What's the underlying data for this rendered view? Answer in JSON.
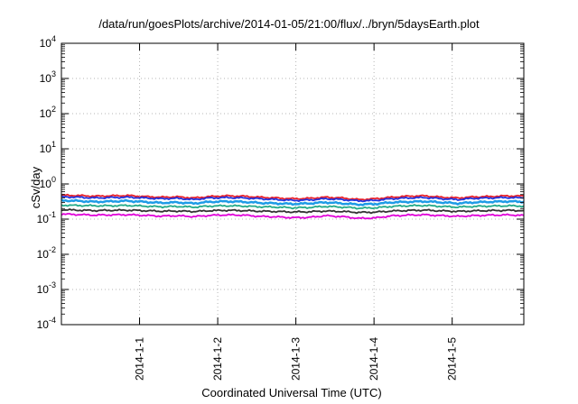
{
  "chart_data": {
    "type": "line",
    "title": "/data/run/goesPlots/archive/2014-01-05/21:00/flux/../bryn/5daysEarth.plot",
    "xlabel": "Coordinated Universal Time (UTC)",
    "ylabel": "cSv/day",
    "xscale": "time",
    "xlim": [
      "2013-12-31 00:00",
      "2014-01-05 22:00"
    ],
    "x_tick_labels": [
      "2014-1-1",
      "2014-1-2",
      "2014-1-3",
      "2014-1-4",
      "2014-1-5"
    ],
    "x_tick_values": [
      "2014-01-01 00:00",
      "2014-01-02 00:00",
      "2014-01-03 00:00",
      "2014-01-04 00:00",
      "2014-01-05 00:00"
    ],
    "yscale": "log",
    "ylim": [
      0.0001,
      10000
    ],
    "y_tick_labels": [
      {
        "base": "10",
        "exp": "-4"
      },
      {
        "base": "10",
        "exp": "-3"
      },
      {
        "base": "10",
        "exp": "-2"
      },
      {
        "base": "10",
        "exp": "-1"
      },
      {
        "base": "10",
        "exp": "0"
      },
      {
        "base": "10",
        "exp": "1"
      },
      {
        "base": "10",
        "exp": "2"
      },
      {
        "base": "10",
        "exp": "3"
      },
      {
        "base": "10",
        "exp": "4"
      }
    ],
    "grid": true,
    "legend": "none",
    "series": [
      {
        "color": "#e8202a",
        "values": [
          0.48,
          0.47,
          0.45,
          0.46,
          0.47,
          0.44,
          0.42,
          0.43,
          0.4,
          0.44,
          0.46,
          0.45,
          0.42,
          0.4,
          0.38,
          0.39,
          0.42,
          0.4,
          0.36,
          0.38,
          0.42,
          0.45,
          0.46,
          0.42,
          0.4,
          0.43,
          0.44,
          0.46,
          0.45
        ]
      },
      {
        "color": "#2233dd",
        "values": [
          0.43,
          0.42,
          0.4,
          0.41,
          0.42,
          0.4,
          0.38,
          0.39,
          0.36,
          0.4,
          0.41,
          0.4,
          0.38,
          0.36,
          0.34,
          0.35,
          0.38,
          0.36,
          0.33,
          0.34,
          0.38,
          0.4,
          0.41,
          0.38,
          0.36,
          0.39,
          0.4,
          0.41,
          0.4
        ]
      },
      {
        "color": "#1e9be6",
        "values": [
          0.34,
          0.33,
          0.31,
          0.32,
          0.33,
          0.31,
          0.29,
          0.3,
          0.28,
          0.31,
          0.32,
          0.31,
          0.29,
          0.28,
          0.27,
          0.28,
          0.3,
          0.28,
          0.26,
          0.27,
          0.3,
          0.31,
          0.32,
          0.3,
          0.28,
          0.3,
          0.31,
          0.32,
          0.31
        ]
      },
      {
        "color": "#22aa88",
        "values": [
          0.25,
          0.245,
          0.24,
          0.24,
          0.245,
          0.235,
          0.225,
          0.23,
          0.22,
          0.235,
          0.24,
          0.235,
          0.225,
          0.22,
          0.21,
          0.215,
          0.23,
          0.22,
          0.205,
          0.21,
          0.23,
          0.24,
          0.245,
          0.23,
          0.22,
          0.23,
          0.235,
          0.24,
          0.235
        ]
      },
      {
        "color": "#333333",
        "values": [
          0.185,
          0.18,
          0.175,
          0.178,
          0.18,
          0.174,
          0.168,
          0.17,
          0.165,
          0.174,
          0.178,
          0.175,
          0.168,
          0.165,
          0.16,
          0.162,
          0.17,
          0.165,
          0.155,
          0.158,
          0.17,
          0.176,
          0.18,
          0.172,
          0.166,
          0.172,
          0.175,
          0.178,
          0.175
        ]
      },
      {
        "color": "#e000d8",
        "values": [
          0.14,
          0.135,
          0.13,
          0.132,
          0.134,
          0.128,
          0.122,
          0.125,
          0.118,
          0.128,
          0.132,
          0.13,
          0.12,
          0.116,
          0.11,
          0.112,
          0.125,
          0.118,
          0.105,
          0.108,
          0.124,
          0.13,
          0.133,
          0.126,
          0.12,
          0.126,
          0.13,
          0.132,
          0.128
        ]
      }
    ]
  }
}
